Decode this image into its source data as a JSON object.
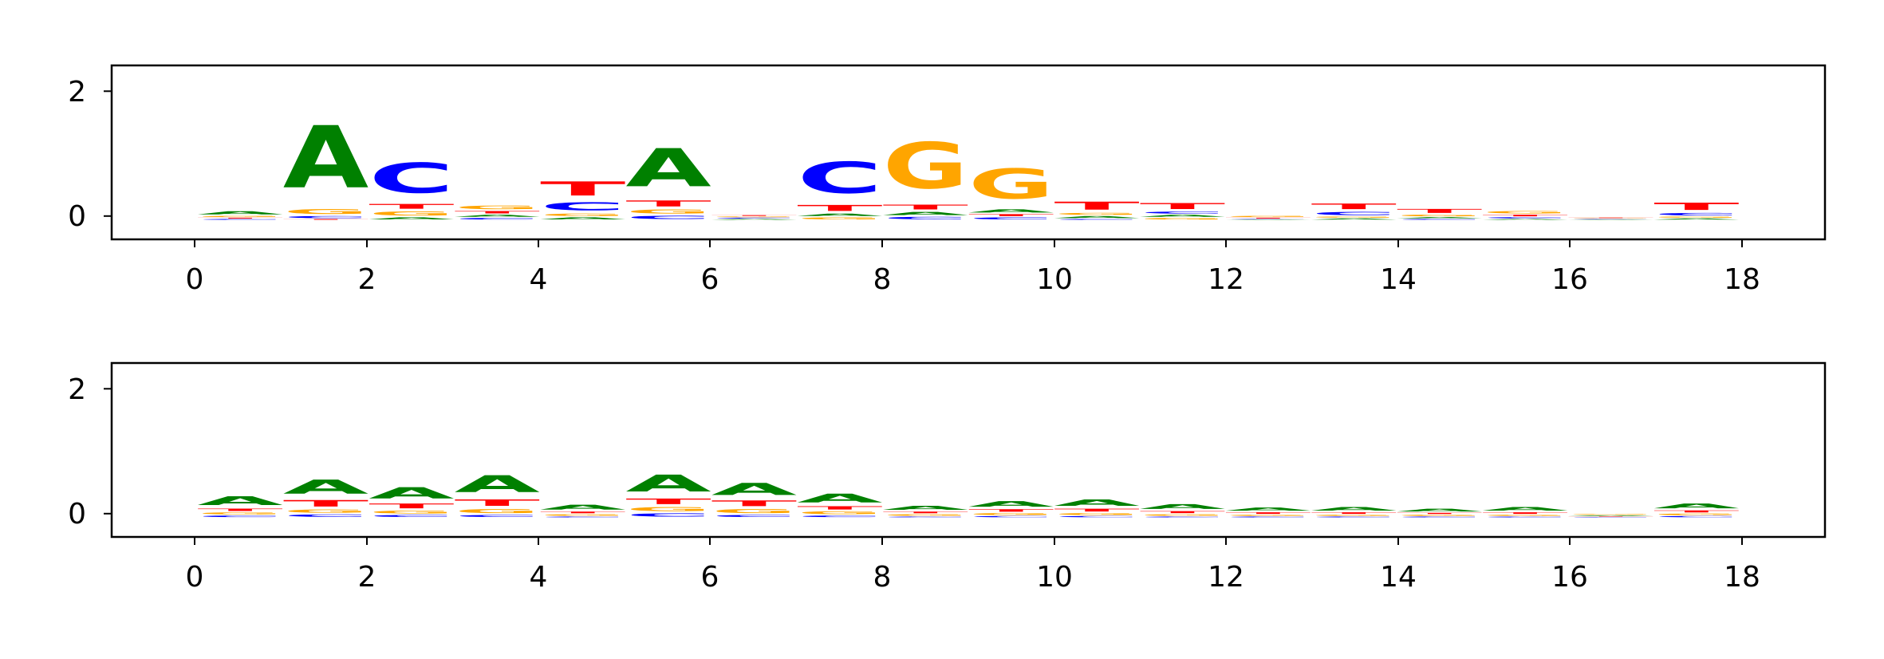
{
  "colors": {
    "A": "#008000",
    "C": "#0000ff",
    "G": "#ffa500",
    "T": "#ff0000",
    "axis": "#000000",
    "background": "#ffffff"
  },
  "chart_data": [
    {
      "type": "sequence_logo",
      "title": "",
      "xlabel": "",
      "ylabel": "",
      "xlim": [
        -1,
        19
      ],
      "ylim": [
        -0.3,
        2.4
      ],
      "xticks": [
        0,
        2,
        4,
        6,
        8,
        10,
        12,
        14,
        16,
        18
      ],
      "xtick_labels": [
        "0",
        "2",
        "4",
        "6",
        "8",
        "10",
        "12",
        "14",
        "16",
        "18"
      ],
      "yticks": [
        0,
        2
      ],
      "ytick_labels": [
        "0",
        "2"
      ],
      "letter_order": [
        "A",
        "C",
        "G",
        "T"
      ],
      "positions": [
        {
          "x": 0,
          "A": 0.08,
          "C": 0.02,
          "G": 0.03,
          "T": 0.02
        },
        {
          "x": 1,
          "A": 1.55,
          "C": 0.05,
          "G": 0.12,
          "T": 0.02
        },
        {
          "x": 2,
          "A": 0.05,
          "C": 0.75,
          "G": 0.1,
          "T": 0.12
        },
        {
          "x": 3,
          "A": 0.05,
          "C": 0.04,
          "G": 0.09,
          "T": 0.06
        },
        {
          "x": 4,
          "A": 0.05,
          "C": 0.2,
          "G": 0.06,
          "T": 0.35
        },
        {
          "x": 5,
          "A": 0.95,
          "C": 0.08,
          "G": 0.1,
          "T": 0.15
        },
        {
          "x": 6,
          "A": 0.02,
          "C": 0.02,
          "G": 0.02,
          "T": 0.02
        },
        {
          "x": 7,
          "A": 0.06,
          "C": 0.78,
          "G": 0.05,
          "T": 0.15
        },
        {
          "x": 8,
          "A": 0.08,
          "C": 0.06,
          "G": 1.15,
          "T": 0.12
        },
        {
          "x": 9,
          "A": 0.08,
          "C": 0.05,
          "G": 0.75,
          "T": 0.05
        },
        {
          "x": 10,
          "A": 0.05,
          "C": 0.02,
          "G": 0.05,
          "T": 0.2
        },
        {
          "x": 11,
          "A": 0.05,
          "C": 0.05,
          "G": 0.04,
          "T": 0.15
        },
        {
          "x": 12,
          "A": 0.01,
          "C": 0.01,
          "G": 0.03,
          "T": 0.02
        },
        {
          "x": 13,
          "A": 0.03,
          "C": 0.08,
          "G": 0.03,
          "T": 0.14
        },
        {
          "x": 14,
          "A": 0.03,
          "C": 0.02,
          "G": 0.04,
          "T": 0.1
        },
        {
          "x": 15,
          "A": 0.02,
          "C": 0.03,
          "G": 0.06,
          "T": 0.04
        },
        {
          "x": 16,
          "A": 0.01,
          "C": 0.01,
          "G": 0.01,
          "T": 0.01
        },
        {
          "x": 17,
          "A": 0.03,
          "C": 0.06,
          "G": 0.03,
          "T": 0.18
        }
      ]
    },
    {
      "type": "sequence_logo",
      "title": "",
      "xlabel": "",
      "ylabel": "",
      "xlim": [
        -1,
        19
      ],
      "ylim": [
        -0.3,
        2.4
      ],
      "xticks": [
        0,
        2,
        4,
        6,
        8,
        10,
        12,
        14,
        16,
        18
      ],
      "xtick_labels": [
        "0",
        "2",
        "4",
        "6",
        "8",
        "10",
        "12",
        "14",
        "16",
        "18"
      ],
      "yticks": [
        0,
        2
      ],
      "ytick_labels": [
        "0",
        "2"
      ],
      "letter_order": [
        "A",
        "C",
        "G",
        "T"
      ],
      "positions": [
        {
          "x": 0,
          "A": 0.22,
          "C": 0.04,
          "G": 0.05,
          "T": 0.06
        },
        {
          "x": 1,
          "A": 0.35,
          "C": 0.06,
          "G": 0.08,
          "T": 0.16
        },
        {
          "x": 2,
          "A": 0.28,
          "C": 0.05,
          "G": 0.07,
          "T": 0.12
        },
        {
          "x": 3,
          "A": 0.42,
          "C": 0.05,
          "G": 0.1,
          "T": 0.16
        },
        {
          "x": 4,
          "A": 0.12,
          "C": 0.02,
          "G": 0.04,
          "T": 0.04
        },
        {
          "x": 5,
          "A": 0.42,
          "C": 0.08,
          "G": 0.1,
          "T": 0.14
        },
        {
          "x": 6,
          "A": 0.3,
          "C": 0.05,
          "G": 0.1,
          "T": 0.14
        },
        {
          "x": 7,
          "A": 0.22,
          "C": 0.04,
          "G": 0.07,
          "T": 0.08
        },
        {
          "x": 8,
          "A": 0.1,
          "C": 0.02,
          "G": 0.04,
          "T": 0.04
        },
        {
          "x": 9,
          "A": 0.14,
          "C": 0.03,
          "G": 0.05,
          "T": 0.06
        },
        {
          "x": 10,
          "A": 0.16,
          "C": 0.03,
          "G": 0.05,
          "T": 0.07
        },
        {
          "x": 11,
          "A": 0.12,
          "C": 0.02,
          "G": 0.04,
          "T": 0.05
        },
        {
          "x": 12,
          "A": 0.08,
          "C": 0.02,
          "G": 0.03,
          "T": 0.04
        },
        {
          "x": 13,
          "A": 0.09,
          "C": 0.02,
          "G": 0.03,
          "T": 0.04
        },
        {
          "x": 14,
          "A": 0.07,
          "C": 0.02,
          "G": 0.03,
          "T": 0.03
        },
        {
          "x": 15,
          "A": 0.09,
          "C": 0.02,
          "G": 0.03,
          "T": 0.04
        },
        {
          "x": 16,
          "A": 0.02,
          "C": 0.01,
          "G": 0.02,
          "T": 0.01
        },
        {
          "x": 17,
          "A": 0.12,
          "C": 0.03,
          "G": 0.04,
          "T": 0.05
        }
      ]
    }
  ]
}
